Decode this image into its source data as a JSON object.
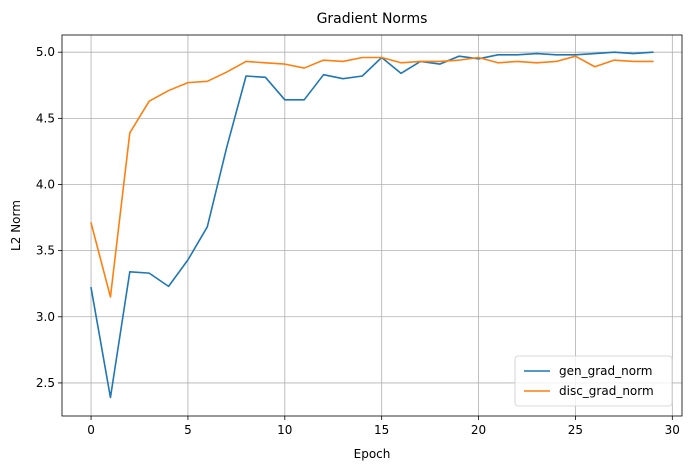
{
  "chart_data": {
    "type": "line",
    "title": "Gradient Norms",
    "xlabel": "Epoch",
    "ylabel": "L2 Norm",
    "xlim": [
      -1.5,
      30.5
    ],
    "ylim": [
      2.25,
      5.13
    ],
    "xticks": [
      0,
      5,
      10,
      15,
      20,
      25,
      30
    ],
    "yticks": [
      2.5,
      3.0,
      3.5,
      4.0,
      4.5,
      5.0
    ],
    "xtick_labels": [
      "0",
      "5",
      "10",
      "15",
      "20",
      "25",
      "30"
    ],
    "ytick_labels": [
      "2.5",
      "3.0",
      "3.5",
      "4.0",
      "4.5",
      "5.0"
    ],
    "grid": true,
    "legend_position": "lower-right",
    "x": [
      0,
      1,
      2,
      3,
      4,
      5,
      6,
      7,
      8,
      9,
      10,
      11,
      12,
      13,
      14,
      15,
      16,
      17,
      18,
      19,
      20,
      21,
      22,
      23,
      24,
      25,
      26,
      27,
      28,
      29
    ],
    "series": [
      {
        "name": "gen_grad_norm",
        "color": "#1f77b4",
        "values": [
          3.22,
          2.39,
          3.34,
          3.33,
          3.23,
          3.43,
          3.68,
          4.28,
          4.82,
          4.81,
          4.64,
          4.64,
          4.83,
          4.8,
          4.82,
          4.96,
          4.84,
          4.93,
          4.91,
          4.97,
          4.95,
          4.98,
          4.98,
          4.99,
          4.98,
          4.98,
          4.99,
          5.0,
          4.99,
          5.0
        ]
      },
      {
        "name": "disc_grad_norm",
        "color": "#ff7f0e",
        "values": [
          3.71,
          3.15,
          4.39,
          4.63,
          4.71,
          4.77,
          4.78,
          4.85,
          4.93,
          4.92,
          4.91,
          4.88,
          4.94,
          4.93,
          4.96,
          4.96,
          4.92,
          4.93,
          4.93,
          4.94,
          4.96,
          4.92,
          4.93,
          4.92,
          4.93,
          4.97,
          4.89,
          4.94,
          4.93,
          4.93
        ]
      }
    ]
  }
}
